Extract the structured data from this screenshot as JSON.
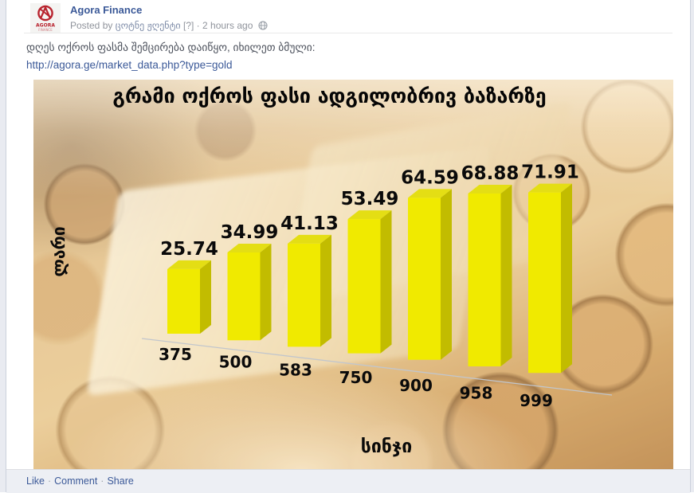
{
  "header": {
    "page_name": "Agora Finance",
    "byline": {
      "prefix": "Posted by",
      "author": "ცოტნე ჟღენტი",
      "badge": "[?]",
      "separator": "·",
      "time": "2 hours ago"
    },
    "logo": {
      "line1": "AGORA",
      "line2": "FINANCE",
      "brand_color": "#b8232e"
    }
  },
  "post": {
    "message": "დღეს ოქროს ფასმა შემცირება დაიწყო, იხილეთ ბმული:",
    "link": "http://agora.ge/market_data.php?type=gold"
  },
  "chart_data": {
    "type": "bar",
    "style": "3d-columns on photo of gold coins and bullion",
    "title": "გრამი ოქროს ფასი ადგილობრივ ბაზარზე",
    "xlabel": "სინჯი",
    "ylabel": "ლარი",
    "categories": [
      "375",
      "500",
      "583",
      "750",
      "900",
      "958",
      "999"
    ],
    "values": [
      25.74,
      34.99,
      41.13,
      53.49,
      64.59,
      68.88,
      71.91
    ],
    "legend": "none",
    "gridlines": "off",
    "bar_front_color": "#f0ea00",
    "bar_side_color": "#c2bc00",
    "bar_top_color": "#e4de14",
    "axis_line_color": "#c2c6cc",
    "label_color": "#0a0a0a"
  },
  "footer": {
    "actions": [
      "Like",
      "Comment",
      "Share"
    ],
    "separator": "·",
    "link_color": "#3b5998"
  }
}
